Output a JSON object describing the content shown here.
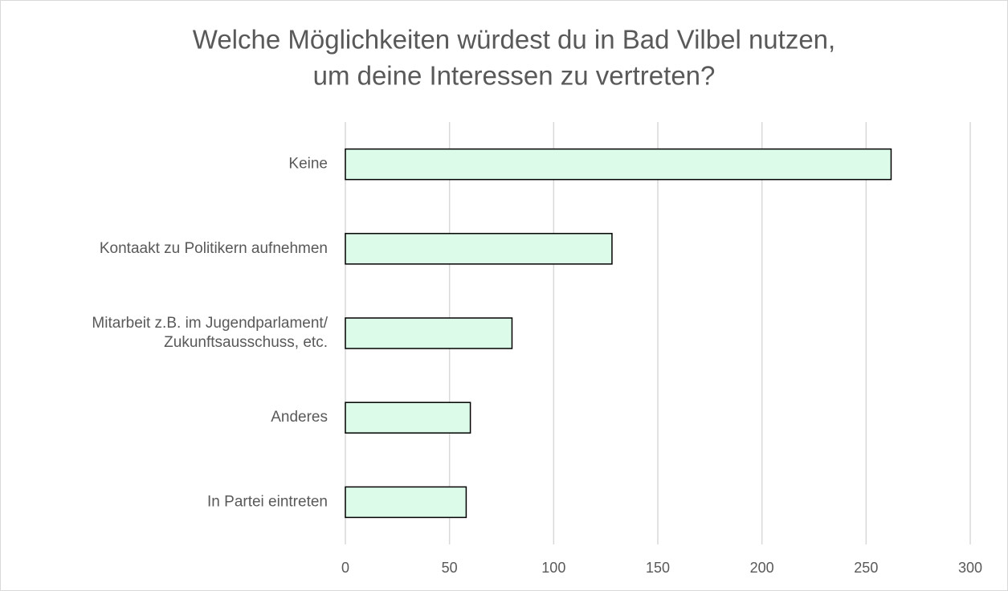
{
  "chart_data": {
    "type": "bar",
    "orientation": "horizontal",
    "title": [
      "Welche Möglichkeiten würdest du in Bad Vilbel nutzen,",
      "um deine Interessen zu vertreten?"
    ],
    "categories": [
      "Keine",
      "Kontaakt zu Politikern aufnehmen",
      "Mitarbeit z.B. im Jugendparlament/\nZukunftsausschuss, etc.",
      "Anderes",
      "In Partei eintreten"
    ],
    "values": [
      262,
      128,
      80,
      60,
      58
    ],
    "color": "#dcfce9",
    "xlim": [
      0,
      300
    ],
    "xticks": [
      0,
      50,
      100,
      150,
      200,
      250,
      300
    ],
    "grid": true
  }
}
